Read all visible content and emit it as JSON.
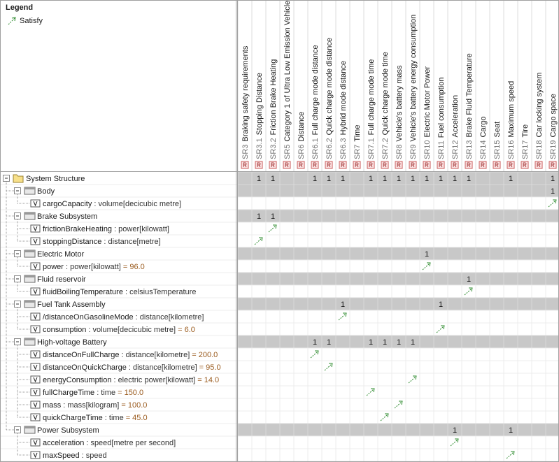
{
  "legend": {
    "title": "Legend",
    "items": [
      "Satisfy"
    ]
  },
  "columns": [
    {
      "id": "SR3",
      "name": "Braking safety requirements"
    },
    {
      "id": "SR3.1",
      "name": "Stopping Distance"
    },
    {
      "id": "SR3.2",
      "name": "Friction Brake Heating"
    },
    {
      "id": "SR5",
      "name": "Category 1 of Ultra Low Emission Vehicle"
    },
    {
      "id": "SR6",
      "name": "Distance"
    },
    {
      "id": "SR6.1",
      "name": "Full charge mode distance"
    },
    {
      "id": "SR6.2",
      "name": "Quick charge mode distance"
    },
    {
      "id": "SR6.3",
      "name": "Hybrid mode distance"
    },
    {
      "id": "SR7",
      "name": "Time"
    },
    {
      "id": "SR7.1",
      "name": "Full charge mode time"
    },
    {
      "id": "SR7.2",
      "name": "Quick charge mode time"
    },
    {
      "id": "SR8",
      "name": "Vehicle's battery mass"
    },
    {
      "id": "SR9",
      "name": "Vehicle's battery energy consumption"
    },
    {
      "id": "SR10",
      "name": "Electric Motor Power"
    },
    {
      "id": "SR11",
      "name": "Fuel consumption"
    },
    {
      "id": "SR12",
      "name": "Acceleration"
    },
    {
      "id": "SR13",
      "name": "Brake Fluid Temperature"
    },
    {
      "id": "SR14",
      "name": "Cargo"
    },
    {
      "id": "SR15",
      "name": "Seat"
    },
    {
      "id": "SR16",
      "name": "Maximum speed"
    },
    {
      "id": "SR17",
      "name": "Tire"
    },
    {
      "id": "SR18",
      "name": "Car locking system"
    },
    {
      "id": "SR19",
      "name": "Cargo space"
    }
  ],
  "tree": {
    "name": "System Structure",
    "cells": [
      null,
      1,
      1,
      null,
      null,
      1,
      1,
      1,
      null,
      1,
      1,
      1,
      1,
      1,
      1,
      1,
      1,
      null,
      null,
      1,
      null,
      null,
      1
    ],
    "children": [
      {
        "name": "Body",
        "cells": [
          null,
          null,
          null,
          null,
          null,
          null,
          null,
          null,
          null,
          null,
          null,
          null,
          null,
          null,
          null,
          null,
          null,
          null,
          null,
          null,
          null,
          null,
          1
        ],
        "children": [
          {
            "name": "cargoCapacity",
            "type": ": volume[decicubic metre]",
            "satisfy": [
              22
            ]
          }
        ]
      },
      {
        "name": "Brake Subsystem",
        "cells": [
          null,
          1,
          1,
          null,
          null,
          null,
          null,
          null,
          null,
          null,
          null,
          null,
          null,
          null,
          null,
          null,
          null,
          null,
          null,
          null,
          null,
          null,
          null
        ],
        "children": [
          {
            "name": "frictionBrakeHeating",
            "type": ": power[kilowatt]",
            "satisfy": [
              2
            ]
          },
          {
            "name": "stoppingDistance",
            "type": ": distance[metre]",
            "satisfy": [
              1
            ]
          }
        ]
      },
      {
        "name": "Electric Motor",
        "cells": [
          null,
          null,
          null,
          null,
          null,
          null,
          null,
          null,
          null,
          null,
          null,
          null,
          null,
          1,
          null,
          null,
          null,
          null,
          null,
          null,
          null,
          null,
          null
        ],
        "children": [
          {
            "name": "power",
            "type": ": power[kilowatt]",
            "default": "= 96.0",
            "satisfy": [
              13
            ]
          }
        ]
      },
      {
        "name": "Fluid reservoir",
        "cells": [
          null,
          null,
          null,
          null,
          null,
          null,
          null,
          null,
          null,
          null,
          null,
          null,
          null,
          null,
          null,
          null,
          1,
          null,
          null,
          null,
          null,
          null,
          null
        ],
        "children": [
          {
            "name": "fluidBoilingTemperature",
            "type": ": celsiusTemperature",
            "satisfy": [
              16
            ]
          }
        ]
      },
      {
        "name": "Fuel Tank Assembly",
        "cells": [
          null,
          null,
          null,
          null,
          null,
          null,
          null,
          1,
          null,
          null,
          null,
          null,
          null,
          null,
          1,
          null,
          null,
          null,
          null,
          null,
          null,
          null,
          null
        ],
        "children": [
          {
            "name": "/distanceOnGasolineMode",
            "type": ": distance[kilometre]",
            "satisfy": [
              7
            ]
          },
          {
            "name": "consumption",
            "type": ": volume[decicubic metre]",
            "default": "= 6.0",
            "satisfy": [
              14
            ]
          }
        ]
      },
      {
        "name": "High-voltage Battery",
        "cells": [
          null,
          null,
          null,
          null,
          null,
          1,
          1,
          null,
          null,
          1,
          1,
          1,
          1,
          null,
          null,
          null,
          null,
          null,
          null,
          null,
          null,
          null,
          null
        ],
        "children": [
          {
            "name": "distanceOnFullCharge",
            "type": ": distance[kilometre]",
            "default": "= 200.0",
            "satisfy": [
              5
            ]
          },
          {
            "name": "distanceOnQuickCharge",
            "type": ": distance[kilometre]",
            "default": "= 95.0",
            "satisfy": [
              6
            ]
          },
          {
            "name": "energyConsumption",
            "type": ": electric power[kilowatt]",
            "default": "= 14.0",
            "satisfy": [
              12
            ]
          },
          {
            "name": "fullChargeTime",
            "type": ": time",
            "default": "= 150.0",
            "satisfy": [
              9
            ]
          },
          {
            "name": "mass",
            "type": ": mass[kilogram]",
            "default": "= 100.0",
            "satisfy": [
              11
            ]
          },
          {
            "name": "quickChargeTime",
            "type": ": time",
            "default": "= 45.0",
            "satisfy": [
              10
            ]
          }
        ]
      },
      {
        "name": "Power Subsystem",
        "cells": [
          null,
          null,
          null,
          null,
          null,
          null,
          null,
          null,
          null,
          null,
          null,
          null,
          null,
          null,
          null,
          1,
          null,
          null,
          null,
          1,
          null,
          null,
          null
        ],
        "children": [
          {
            "name": "acceleration",
            "type": ": speed[metre per second]",
            "satisfy": [
              15
            ]
          },
          {
            "name": "maxSpeed",
            "type": ": speed",
            "satisfy": [
              19
            ]
          }
        ]
      }
    ]
  }
}
